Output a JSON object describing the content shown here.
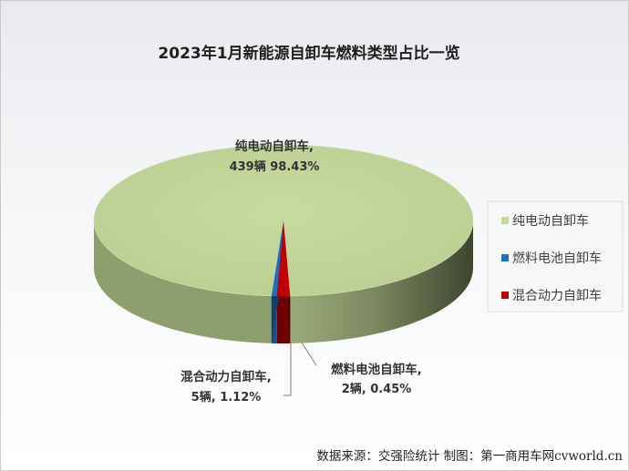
{
  "chart_data": {
    "type": "pie",
    "title": "2023年1月新能源自卸车燃料类型占比一览",
    "slices": [
      {
        "name": "纯电动自卸车",
        "value": 439,
        "percent": "98.43%",
        "color": "#c3d69b",
        "label_line1": "纯电动自卸车,",
        "label_line2": "439辆 98.43%"
      },
      {
        "name": "燃料电池自卸车",
        "value": 2,
        "percent": "0.45%",
        "color": "#1f6fc0",
        "label_line1": "燃料电池自卸车,",
        "label_line2": "2辆, 0.45%"
      },
      {
        "name": "混合动力自卸车",
        "value": 5,
        "percent": "1.12%",
        "color": "#c00000",
        "label_line1": "混合动力自卸车,",
        "label_line2": "5辆, 1.12%"
      }
    ],
    "legend": [
      "纯电动自卸车",
      "燃料电池自卸车",
      "混合动力自卸车"
    ],
    "legend_position": "right",
    "style": "3d-pie"
  },
  "footer": {
    "source": "数据来源：交强险统计 制图：第一商用车网cvworld.cn"
  }
}
